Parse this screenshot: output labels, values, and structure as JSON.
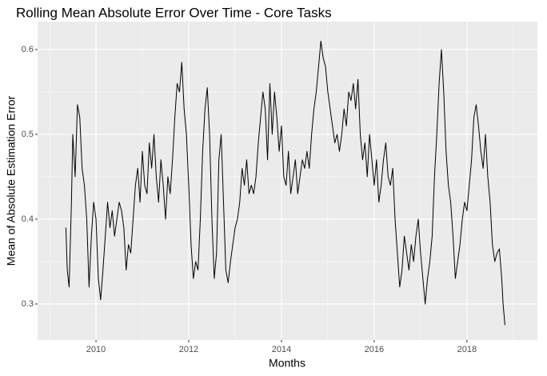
{
  "chart_data": {
    "type": "line",
    "title": "Rolling Mean Absolute Error Over Time - Core Tasks",
    "x_label": "Months",
    "y_label": "Mean of Absolute Estimation Error",
    "color": "#000000",
    "grid": true,
    "xlim": [
      2008.74,
      2019.52
    ],
    "ylim": [
      0.2575,
      0.633
    ],
    "xticks": [
      2010,
      2012,
      2014,
      2016,
      2018
    ],
    "yticks": [
      0.3,
      0.4,
      0.5,
      0.6
    ],
    "x": [
      2009.35,
      2009.38,
      2009.42,
      2009.47,
      2009.5,
      2009.55,
      2009.6,
      2009.65,
      2009.7,
      2009.75,
      2009.8,
      2009.85,
      2009.9,
      2009.95,
      2010.0,
      2010.05,
      2010.1,
      2010.15,
      2010.2,
      2010.25,
      2010.3,
      2010.35,
      2010.4,
      2010.45,
      2010.5,
      2010.55,
      2010.6,
      2010.65,
      2010.7,
      2010.75,
      2010.8,
      2010.85,
      2010.9,
      2010.95,
      2011.0,
      2011.05,
      2011.1,
      2011.15,
      2011.2,
      2011.25,
      2011.3,
      2011.35,
      2011.4,
      2011.45,
      2011.5,
      2011.55,
      2011.6,
      2011.65,
      2011.7,
      2011.75,
      2011.8,
      2011.85,
      2011.9,
      2011.95,
      2012.0,
      2012.05,
      2012.1,
      2012.15,
      2012.2,
      2012.25,
      2012.3,
      2012.35,
      2012.4,
      2012.45,
      2012.5,
      2012.55,
      2012.6,
      2012.65,
      2012.7,
      2012.75,
      2012.8,
      2012.85,
      2012.9,
      2012.95,
      2013.0,
      2013.05,
      2013.1,
      2013.15,
      2013.2,
      2013.25,
      2013.3,
      2013.35,
      2013.4,
      2013.45,
      2013.5,
      2013.55,
      2013.6,
      2013.65,
      2013.7,
      2013.75,
      2013.8,
      2013.85,
      2013.9,
      2013.95,
      2014.0,
      2014.05,
      2014.1,
      2014.15,
      2014.2,
      2014.25,
      2014.3,
      2014.35,
      2014.4,
      2014.45,
      2014.5,
      2014.55,
      2014.6,
      2014.65,
      2014.7,
      2014.75,
      2014.8,
      2014.85,
      2014.9,
      2014.95,
      2015.0,
      2015.05,
      2015.1,
      2015.15,
      2015.2,
      2015.25,
      2015.3,
      2015.35,
      2015.4,
      2015.45,
      2015.5,
      2015.55,
      2015.6,
      2015.65,
      2015.7,
      2015.75,
      2015.8,
      2015.85,
      2015.9,
      2015.95,
      2016.0,
      2016.05,
      2016.1,
      2016.15,
      2016.2,
      2016.25,
      2016.3,
      2016.35,
      2016.4,
      2016.45,
      2016.5,
      2016.55,
      2016.6,
      2016.65,
      2016.7,
      2016.75,
      2016.8,
      2016.85,
      2016.9,
      2016.95,
      2017.0,
      2017.05,
      2017.1,
      2017.15,
      2017.2,
      2017.25,
      2017.3,
      2017.35,
      2017.4,
      2017.45,
      2017.5,
      2017.55,
      2017.6,
      2017.65,
      2017.7,
      2017.75,
      2017.8,
      2017.85,
      2017.9,
      2017.95,
      2018.0,
      2018.05,
      2018.1,
      2018.15,
      2018.2,
      2018.25,
      2018.3,
      2018.35,
      2018.4,
      2018.45,
      2018.5,
      2018.55,
      2018.6,
      2018.65,
      2018.7,
      2018.75,
      2018.78,
      2018.82
    ],
    "values": [
      0.39,
      0.34,
      0.32,
      0.42,
      0.5,
      0.45,
      0.535,
      0.52,
      0.46,
      0.44,
      0.4,
      0.32,
      0.38,
      0.42,
      0.4,
      0.33,
      0.305,
      0.34,
      0.38,
      0.42,
      0.39,
      0.41,
      0.38,
      0.4,
      0.42,
      0.41,
      0.39,
      0.34,
      0.37,
      0.36,
      0.4,
      0.44,
      0.46,
      0.42,
      0.48,
      0.44,
      0.43,
      0.49,
      0.46,
      0.5,
      0.45,
      0.42,
      0.47,
      0.44,
      0.4,
      0.45,
      0.43,
      0.47,
      0.52,
      0.56,
      0.55,
      0.585,
      0.53,
      0.5,
      0.44,
      0.37,
      0.33,
      0.35,
      0.34,
      0.4,
      0.48,
      0.53,
      0.555,
      0.5,
      0.4,
      0.33,
      0.36,
      0.47,
      0.5,
      0.42,
      0.34,
      0.325,
      0.35,
      0.37,
      0.39,
      0.4,
      0.42,
      0.46,
      0.44,
      0.47,
      0.43,
      0.44,
      0.43,
      0.45,
      0.49,
      0.52,
      0.55,
      0.53,
      0.47,
      0.56,
      0.5,
      0.55,
      0.52,
      0.48,
      0.51,
      0.45,
      0.44,
      0.48,
      0.43,
      0.45,
      0.47,
      0.43,
      0.45,
      0.47,
      0.46,
      0.48,
      0.46,
      0.5,
      0.53,
      0.55,
      0.58,
      0.61,
      0.59,
      0.58,
      0.55,
      0.53,
      0.51,
      0.49,
      0.5,
      0.48,
      0.5,
      0.53,
      0.51,
      0.55,
      0.54,
      0.56,
      0.53,
      0.565,
      0.5,
      0.47,
      0.49,
      0.45,
      0.5,
      0.47,
      0.44,
      0.47,
      0.42,
      0.44,
      0.47,
      0.49,
      0.45,
      0.44,
      0.46,
      0.4,
      0.36,
      0.32,
      0.34,
      0.38,
      0.36,
      0.34,
      0.37,
      0.35,
      0.38,
      0.4,
      0.36,
      0.33,
      0.3,
      0.33,
      0.35,
      0.38,
      0.45,
      0.5,
      0.56,
      0.6,
      0.55,
      0.48,
      0.44,
      0.42,
      0.38,
      0.33,
      0.35,
      0.37,
      0.4,
      0.42,
      0.41,
      0.44,
      0.47,
      0.52,
      0.535,
      0.51,
      0.48,
      0.46,
      0.5,
      0.45,
      0.42,
      0.37,
      0.35,
      0.36,
      0.365,
      0.33,
      0.3,
      0.275
    ]
  }
}
